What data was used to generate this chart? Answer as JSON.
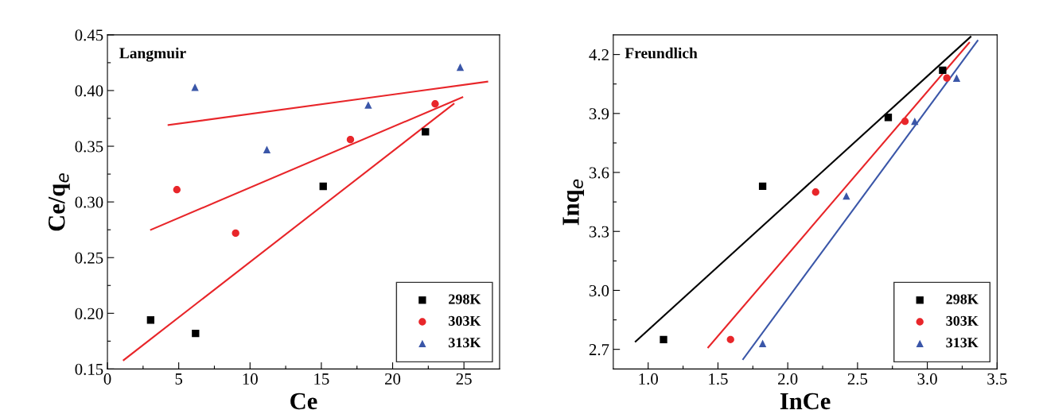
{
  "chart_data": [
    {
      "type": "scatter",
      "annotations": [
        "Langmuir"
      ],
      "xlabel": "Ce",
      "ylabel": "Ce/q$_{e}$",
      "xlim": [
        0,
        27.5
      ],
      "ylim": [
        0.15,
        0.45
      ],
      "xticks": [
        0,
        {
          "value": 2.5,
          "label": null
        },
        5,
        {
          "value": 7.5,
          "label": null
        },
        10,
        {
          "value": 12.5,
          "label": null
        },
        15,
        {
          "value": 17.5,
          "label": null
        },
        20,
        {
          "value": 22.5,
          "label": null
        },
        25
      ],
      "yticks": [
        0.15,
        {
          "value": 0.175,
          "label": null
        },
        {
          "value": 0.2,
          "label": "0.20"
        },
        {
          "value": 0.225,
          "label": null
        },
        0.25,
        {
          "value": 0.275,
          "label": null
        },
        {
          "value": 0.3,
          "label": "0.30"
        },
        {
          "value": 0.325,
          "label": null
        },
        0.35,
        {
          "value": 0.375,
          "label": null
        },
        {
          "value": 0.4,
          "label": "0.40"
        },
        {
          "value": 0.425,
          "label": null
        },
        0.45
      ],
      "grid": false,
      "legend": "bottom right",
      "series": [
        {
          "name": "298K",
          "color": "#000000",
          "marker": "square",
          "x": [
            3.03,
            6.18,
            15.13,
            22.3
          ],
          "values": [
            0.194,
            0.182,
            0.314,
            0.363
          ]
        },
        {
          "name": "303K",
          "color": "#e8262a",
          "marker": "circle",
          "x": [
            4.87,
            8.99,
            17.04,
            22.98
          ],
          "values": [
            0.311,
            0.272,
            0.356,
            0.388
          ]
        },
        {
          "name": "313K",
          "color": "#3a56a8",
          "marker": "triangle",
          "x": [
            6.14,
            11.18,
            18.29,
            24.74
          ],
          "values": [
            0.403,
            0.347,
            0.387,
            0.421
          ]
        },
        {
          "type": "line",
          "color": "#e8262a",
          "x": [
            1.14,
            24.28
          ],
          "values": [
            0.158,
            0.388
          ]
        },
        {
          "type": "line",
          "color": "#e8262a",
          "x": [
            3.05,
            24.89
          ],
          "values": [
            0.275,
            0.394
          ]
        },
        {
          "type": "line",
          "color": "#e8262a",
          "x": [
            4.28,
            26.64
          ],
          "values": [
            0.369,
            0.408
          ]
        }
      ]
    },
    {
      "type": "scatter",
      "annotations": [
        "Freundlich"
      ],
      "xlabel": "InCe",
      "ylabel": "Inq$_{e}$",
      "xlim": [
        0.75,
        3.5
      ],
      "ylim": [
        2.6,
        4.3
      ],
      "xticks": [
        {
          "value": 1.0,
          "label": "1.0"
        },
        {
          "value": 1.25,
          "label": null
        },
        1.5,
        {
          "value": 1.75,
          "label": null
        },
        {
          "value": 2.0,
          "label": "2.0"
        },
        {
          "value": 2.25,
          "label": null
        },
        2.5,
        {
          "value": 2.75,
          "label": null
        },
        {
          "value": 3.0,
          "label": "3.0"
        },
        {
          "value": 3.25,
          "label": null
        },
        3.5
      ],
      "yticks": [
        2.7,
        {
          "value": 2.85,
          "label": null
        },
        {
          "value": 3.0,
          "label": "3.0"
        },
        {
          "value": 3.15,
          "label": null
        },
        3.3,
        {
          "value": 3.45,
          "label": null
        },
        3.6,
        {
          "value": 3.75,
          "label": null
        },
        3.9,
        {
          "value": 4.05,
          "label": null
        },
        4.2
      ],
      "grid": false,
      "legend": "bottom right",
      "series": [
        {
          "name": "298K",
          "color": "#000000",
          "marker": "square",
          "x": [
            1.11,
            1.82,
            2.72,
            3.11
          ],
          "values": [
            2.75,
            3.53,
            3.88,
            4.12
          ]
        },
        {
          "name": "303K",
          "color": "#e8262a",
          "marker": "circle",
          "x": [
            1.59,
            2.2,
            2.84,
            3.14
          ],
          "values": [
            2.75,
            3.5,
            3.86,
            4.08
          ]
        },
        {
          "name": "313K",
          "color": "#3a56a8",
          "marker": "triangle",
          "x": [
            1.82,
            2.42,
            2.91,
            3.21
          ],
          "values": [
            2.73,
            3.48,
            3.86,
            4.08
          ]
        },
        {
          "type": "line",
          "color": "#000000",
          "x": [
            0.91,
            3.31
          ],
          "values": [
            2.74,
            4.29
          ]
        },
        {
          "type": "line",
          "color": "#e8262a",
          "x": [
            1.43,
            3.3
          ],
          "values": [
            2.71,
            4.26
          ]
        },
        {
          "type": "line",
          "color": "#3a56a8",
          "x": [
            1.68,
            3.36
          ],
          "values": [
            2.65,
            4.27
          ]
        }
      ]
    }
  ]
}
